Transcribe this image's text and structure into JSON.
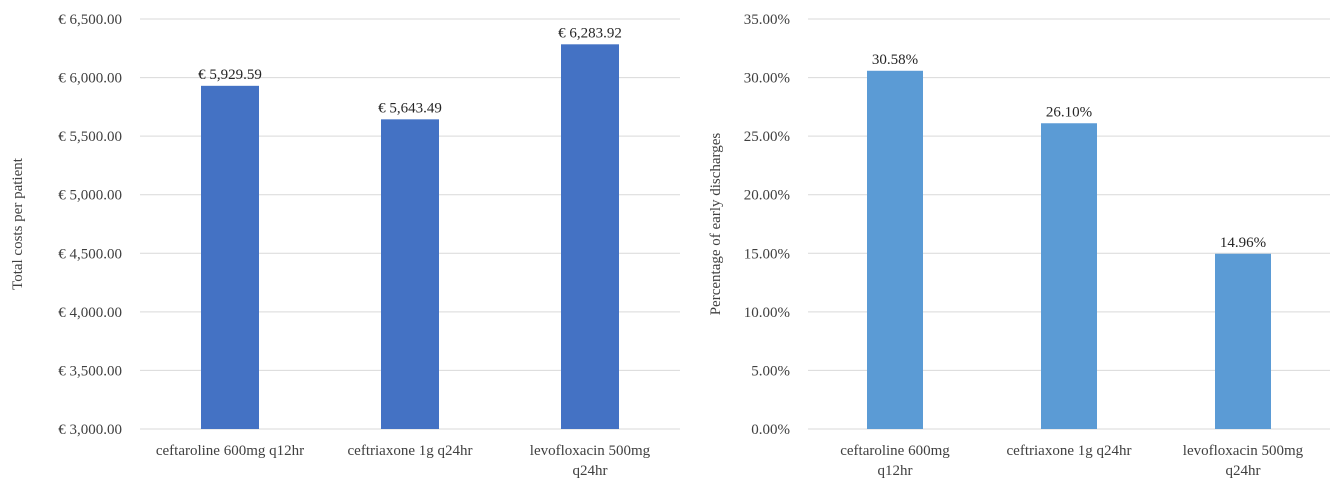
{
  "colors": {
    "left_bar": "#4472c4",
    "right_bar": "#5b9bd5",
    "grid": "#d9d9d9",
    "text": "#404040"
  },
  "chart_data": [
    {
      "type": "bar",
      "title": "",
      "xlabel": "",
      "ylabel": "Total costs per patient",
      "categories": [
        [
          "ceftaroline 600mg q12hr"
        ],
        [
          "ceftriaxone 1g q24hr"
        ],
        [
          "levofloxacin 500mg",
          "q24hr"
        ]
      ],
      "values": [
        5929.59,
        5643.49,
        6283.92
      ],
      "value_labels": [
        "€ 5,929.59",
        "€ 5,643.49",
        "€ 6,283.92"
      ],
      "ylim": [
        3000,
        6500
      ],
      "yticks": [
        3000,
        3500,
        4000,
        4500,
        5000,
        5500,
        6000,
        6500
      ],
      "ytick_labels": [
        "€ 3,000.00",
        "€ 3,500.00",
        "€ 4,000.00",
        "€ 4,500.00",
        "€ 5,000.00",
        "€ 5,500.00",
        "€ 6,000.00",
        "€ 6,500.00"
      ],
      "grid": true,
      "legend": "none"
    },
    {
      "type": "bar",
      "title": "",
      "xlabel": "",
      "ylabel": "Percentage of early discharges",
      "categories": [
        [
          "ceftaroline 600mg",
          "q12hr"
        ],
        [
          "ceftriaxone 1g q24hr"
        ],
        [
          "levofloxacin 500mg",
          "q24hr"
        ]
      ],
      "values": [
        30.58,
        26.1,
        14.96
      ],
      "value_labels": [
        "30.58%",
        "26.10%",
        "14.96%"
      ],
      "ylim": [
        0,
        35
      ],
      "yticks": [
        0,
        5,
        10,
        15,
        20,
        25,
        30,
        35
      ],
      "ytick_labels": [
        "0.00%",
        "5.00%",
        "10.00%",
        "15.00%",
        "20.00%",
        "25.00%",
        "30.00%",
        "35.00%"
      ],
      "grid": true,
      "legend": "none"
    }
  ]
}
